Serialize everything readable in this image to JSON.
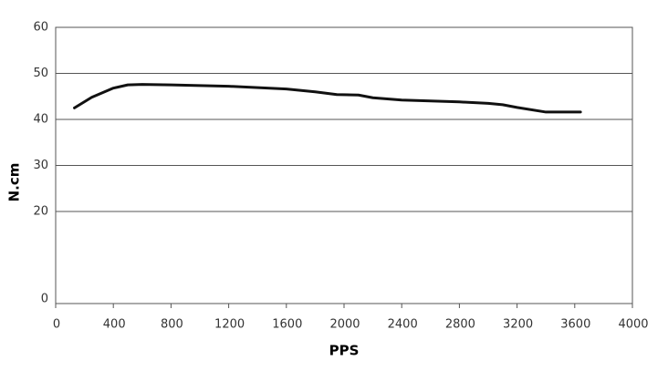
{
  "chart_data": {
    "type": "line",
    "x_label": "PPS",
    "y_label": "N.cm",
    "x": [
      130,
      250,
      400,
      500,
      600,
      800,
      1200,
      1600,
      1800,
      1950,
      2100,
      2200,
      2400,
      2800,
      3000,
      3100,
      3200,
      3400,
      3640
    ],
    "series": [
      {
        "color": "#111111",
        "values": [
          42.5,
          44.8,
          46.8,
          47.5,
          47.6,
          47.5,
          47.2,
          46.6,
          46.0,
          45.4,
          45.3,
          44.7,
          44.2,
          43.8,
          43.5,
          43.2,
          42.6,
          41.6,
          41.6
        ]
      }
    ],
    "xlim": [
      0,
      4000
    ],
    "xticks": [
      0,
      400,
      800,
      1200,
      1600,
      2000,
      2400,
      2800,
      3200,
      3600,
      4000
    ],
    "ylim": [
      0,
      60
    ],
    "yticks": [
      0,
      20,
      30,
      40,
      50,
      60
    ],
    "grid": true
  }
}
